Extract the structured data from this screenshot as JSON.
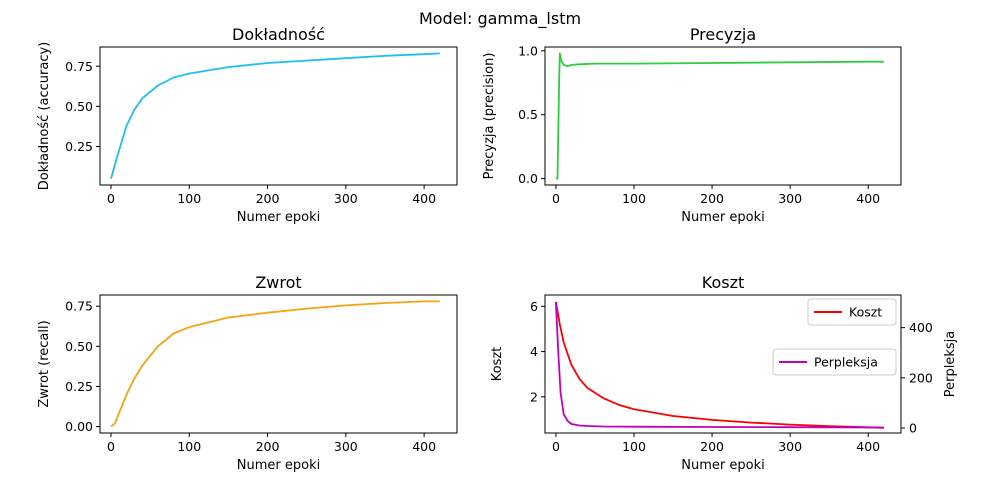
{
  "figure": {
    "suptitle": "Model: gamma_lstm"
  },
  "chart_data": [
    {
      "type": "line",
      "title": "Dokładność",
      "xlabel": "Numer epoki",
      "ylabel": "Dokładność (accuracy)",
      "xlim": [
        -14,
        442
      ],
      "ylim": [
        0.01,
        0.87
      ],
      "xticks": [
        0,
        100,
        200,
        300,
        400
      ],
      "yticks": [
        0.25,
        0.5,
        0.75
      ],
      "x_tick_labels": [
        "0",
        "100",
        "200",
        "300",
        "400"
      ],
      "y_tick_labels": [
        "0.25",
        "0.50",
        "0.75"
      ],
      "grid": false,
      "series": [
        {
          "color": "#1ebff0",
          "x": [
            0,
            10,
            20,
            30,
            40,
            60,
            80,
            100,
            150,
            200,
            250,
            300,
            350,
            400,
            420
          ],
          "y": [
            0.05,
            0.22,
            0.38,
            0.48,
            0.55,
            0.63,
            0.68,
            0.705,
            0.745,
            0.77,
            0.785,
            0.8,
            0.815,
            0.825,
            0.83
          ]
        }
      ]
    },
    {
      "type": "line",
      "title": "Precyzja",
      "xlabel": "Numer epoki",
      "ylabel": "Precyzja (precision)",
      "xlim": [
        -14,
        442
      ],
      "ylim": [
        -0.05,
        1.03
      ],
      "xticks": [
        0,
        100,
        200,
        300,
        400
      ],
      "yticks": [
        0.0,
        0.5,
        1.0
      ],
      "x_tick_labels": [
        "0",
        "100",
        "200",
        "300",
        "400"
      ],
      "y_tick_labels": [
        "0.0",
        "0.5",
        "1.0"
      ],
      "grid": false,
      "series": [
        {
          "color": "#2ecc3e",
          "x": [
            0,
            2,
            4,
            5,
            7,
            10,
            15,
            20,
            30,
            50,
            100,
            200,
            300,
            400,
            420
          ],
          "y": [
            0.0,
            0.0,
            0.75,
            0.98,
            0.92,
            0.89,
            0.88,
            0.89,
            0.895,
            0.9,
            0.9,
            0.905,
            0.91,
            0.915,
            0.915
          ]
        }
      ]
    },
    {
      "type": "line",
      "title": "Zwrot",
      "xlabel": "Numer epoki",
      "ylabel": "Zwrot (recall)",
      "xlim": [
        -14,
        442
      ],
      "ylim": [
        -0.04,
        0.82
      ],
      "xticks": [
        0,
        100,
        200,
        300,
        400
      ],
      "yticks": [
        0.0,
        0.25,
        0.5,
        0.75
      ],
      "x_tick_labels": [
        "0",
        "100",
        "200",
        "300",
        "400"
      ],
      "y_tick_labels": [
        "0.00",
        "0.25",
        "0.50",
        "0.75"
      ],
      "grid": false,
      "series": [
        {
          "color": "#f5a40f",
          "x": [
            0,
            5,
            10,
            20,
            30,
            40,
            60,
            80,
            100,
            150,
            200,
            250,
            300,
            350,
            400,
            420
          ],
          "y": [
            0.0,
            0.02,
            0.08,
            0.2,
            0.3,
            0.38,
            0.5,
            0.58,
            0.62,
            0.68,
            0.71,
            0.735,
            0.755,
            0.77,
            0.78,
            0.78
          ]
        }
      ]
    },
    {
      "type": "line",
      "title": "Koszt",
      "xlabel": "Numer epoki",
      "ylabel": "Koszt",
      "ylabel_right": "Perpleksja",
      "xlim": [
        -14,
        442
      ],
      "ylim": [
        0.4,
        6.5
      ],
      "ylim_right": [
        -20,
        530
      ],
      "xticks": [
        0,
        100,
        200,
        300,
        400
      ],
      "yticks": [
        2,
        4,
        6
      ],
      "yticks_right": [
        0,
        200,
        400
      ],
      "x_tick_labels": [
        "0",
        "100",
        "200",
        "300",
        "400"
      ],
      "y_tick_labels": [
        "2",
        "4",
        "6"
      ],
      "y_tick_labels_right": [
        "0",
        "200",
        "400"
      ],
      "grid": false,
      "series": [
        {
          "name": "Koszt",
          "color": "#ff0000",
          "axis": "left",
          "x": [
            0,
            5,
            10,
            20,
            30,
            40,
            60,
            80,
            100,
            150,
            200,
            250,
            300,
            350,
            400,
            420
          ],
          "y": [
            6.2,
            5.2,
            4.4,
            3.4,
            2.8,
            2.4,
            1.95,
            1.65,
            1.45,
            1.15,
            0.98,
            0.86,
            0.77,
            0.7,
            0.65,
            0.63
          ]
        },
        {
          "name": "Perpleksja",
          "color": "#c000c0",
          "axis": "right",
          "x": [
            0,
            3,
            6,
            10,
            15,
            20,
            30,
            40,
            60,
            100,
            200,
            300,
            420
          ],
          "y": [
            500,
            300,
            140,
            55,
            28,
            16,
            10,
            8,
            6,
            5,
            4,
            3,
            2
          ]
        }
      ],
      "legends": [
        {
          "entries": [
            "Koszt"
          ],
          "placement": "upper right"
        },
        {
          "entries": [
            "Perpleksja"
          ],
          "placement": "center right"
        }
      ]
    }
  ]
}
